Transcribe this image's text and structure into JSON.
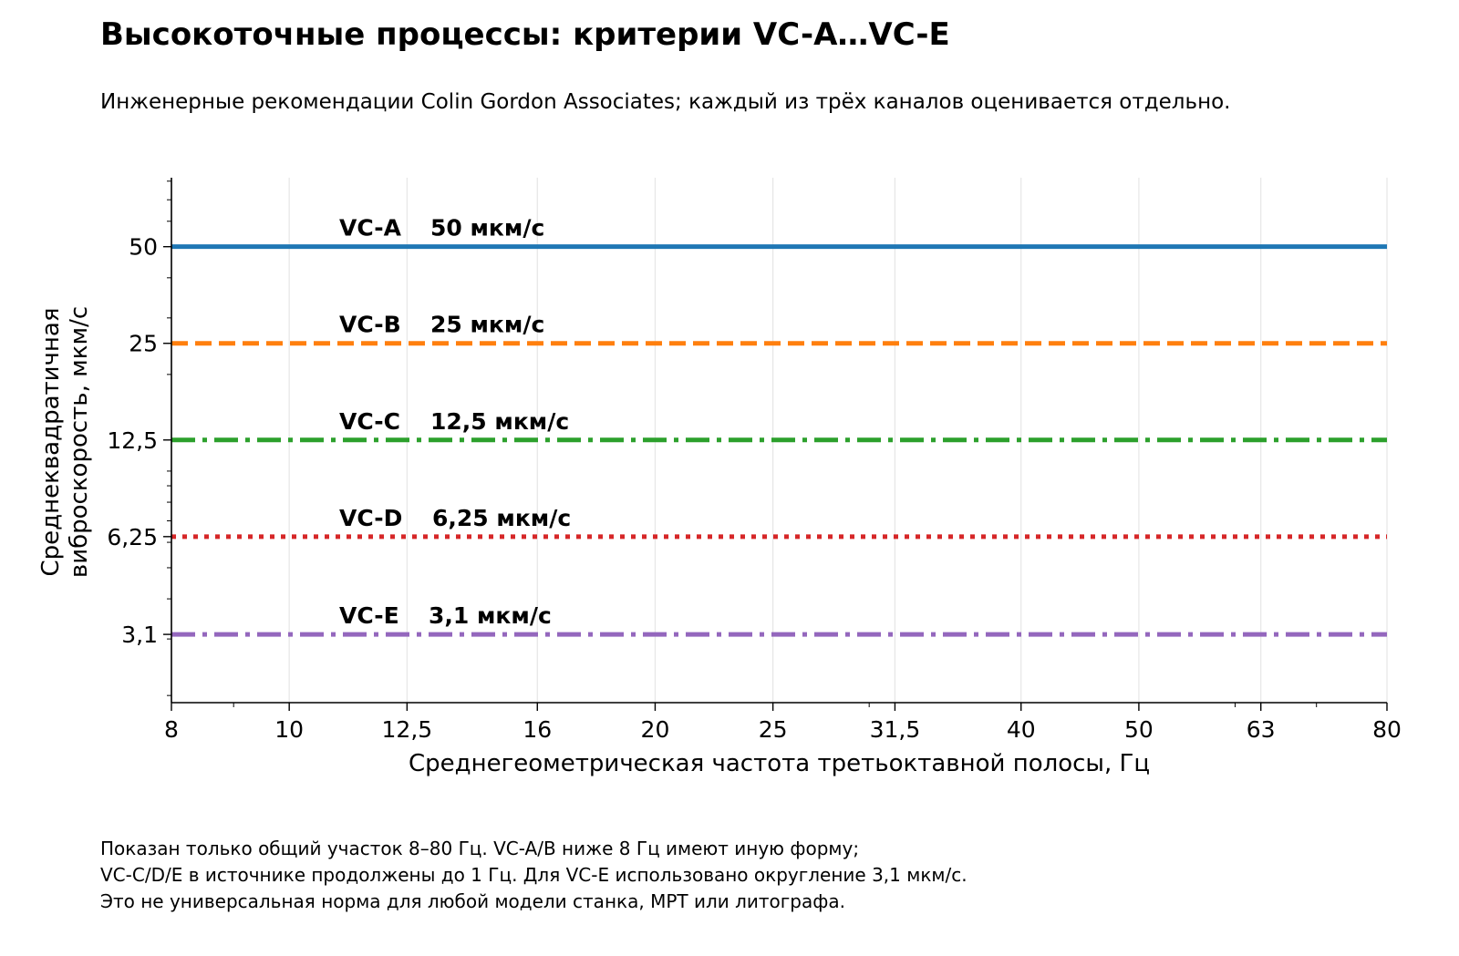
{
  "header": {
    "title": "Высокоточные процессы: критерии VC-A…VC-E",
    "subtitle": "Инженерные рекомендации Colin Gordon Associates; каждый из трёх каналов оценивается отдельно."
  },
  "footnote": {
    "lines": [
      "Показан только общий участок 8–80 Гц. VC-A/B ниже 8 Гц имеют иную форму;",
      "VC-C/D/E в источнике продолжены до 1 Гц. Для VC-E использовано округление 3,1 мкм/с.",
      "Это не универсальная норма для любой модели станка, МРТ или литографа."
    ]
  },
  "chart_data": {
    "type": "line",
    "xlabel": "Среднегеометрическая частота третьоктавной полосы, Гц",
    "ylabel_lines": [
      "Среднеквадратичная",
      "виброскорость, мкм/с"
    ],
    "x_scale": "log",
    "y_scale": "log",
    "xlim": [
      8,
      80
    ],
    "ylim": [
      1.9,
      82
    ],
    "x_ticks": [
      8,
      10,
      12.5,
      16,
      20,
      25,
      31.5,
      40,
      50,
      63,
      80
    ],
    "x_tick_labels": [
      "8",
      "10",
      "12,5",
      "16",
      "20",
      "25",
      "31,5",
      "40",
      "50",
      "63",
      "80"
    ],
    "y_ticks": [
      50,
      25,
      12.5,
      6.25,
      3.1
    ],
    "y_tick_labels": [
      "50",
      "25",
      "12,5",
      "6,25",
      "3,1"
    ],
    "grid": "vertical",
    "series": [
      {
        "name": "VC-A",
        "value_label": "50 мкм/с",
        "x": [
          8,
          80
        ],
        "y": [
          50,
          50
        ],
        "color": "#1f77b4",
        "style": "solid"
      },
      {
        "name": "VC-B",
        "value_label": "25 мкм/с",
        "x": [
          8,
          80
        ],
        "y": [
          25,
          25
        ],
        "color": "#ff7f0e",
        "style": "dashed"
      },
      {
        "name": "VC-C",
        "value_label": "12,5 мкм/с",
        "x": [
          8,
          80
        ],
        "y": [
          12.5,
          12.5
        ],
        "color": "#2ca02c",
        "style": "dashdot"
      },
      {
        "name": "VC-D",
        "value_label": "6,25 мкм/с",
        "x": [
          8,
          80
        ],
        "y": [
          6.25,
          6.25
        ],
        "color": "#d62728",
        "style": "dotted"
      },
      {
        "name": "VC-E",
        "value_label": "3,1 мкм/с",
        "x": [
          8,
          80
        ],
        "y": [
          3.1,
          3.1
        ],
        "color": "#9467bd",
        "style": "dashdot"
      }
    ]
  }
}
